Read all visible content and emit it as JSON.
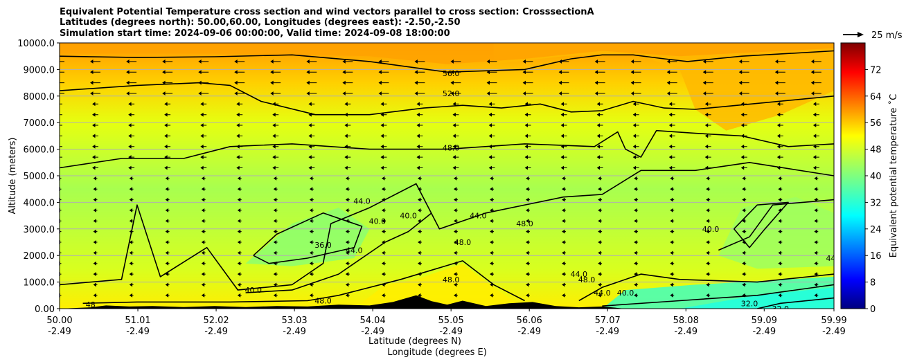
{
  "chart_data": {
    "type": "contour",
    "title_lines": [
      "Equivalent Potential Temperature cross section and wind vectors parallel to cross section: CrosssectionA",
      "Latitudes (degrees north): 50.00,60.00, Longitudes (degrees east): -2.50,-2.50",
      "Simulation start time: 2024-09-06 00:00:00, Valid time: 2024-09-08 18:00:00"
    ],
    "xlabel": "Latitude (degrees N)",
    "xlabel2": "Longitude (degrees E)",
    "ylabel": "Altitude (meters)",
    "xlim": [
      50.0,
      59.99
    ],
    "ylim": [
      0,
      10000
    ],
    "x_ticks": [
      {
        "lat": "50.00",
        "lon": "-2.49",
        "value": 50.0
      },
      {
        "lat": "51.01",
        "lon": "-2.49",
        "value": 51.01
      },
      {
        "lat": "52.02",
        "lon": "-2.49",
        "value": 52.02
      },
      {
        "lat": "53.03",
        "lon": "-2.49",
        "value": 53.03
      },
      {
        "lat": "54.04",
        "lon": "-2.49",
        "value": 54.04
      },
      {
        "lat": "55.05",
        "lon": "-2.49",
        "value": 55.05
      },
      {
        "lat": "56.06",
        "lon": "-2.49",
        "value": 56.06
      },
      {
        "lat": "57.07",
        "lon": "-2.49",
        "value": 57.07
      },
      {
        "lat": "58.08",
        "lon": "-2.49",
        "value": 58.08
      },
      {
        "lat": "59.09",
        "lon": "-2.49",
        "value": 59.09
      },
      {
        "lat": "59.99",
        "lon": "-2.49",
        "value": 59.99
      }
    ],
    "y_ticks": [
      {
        "label": "0.00",
        "value": 0
      },
      {
        "label": "1000.0",
        "value": 1000
      },
      {
        "label": "2000.0",
        "value": 2000
      },
      {
        "label": "3000.0",
        "value": 3000
      },
      {
        "label": "4000.0",
        "value": 4000
      },
      {
        "label": "5000.0",
        "value": 5000
      },
      {
        "label": "6000.0",
        "value": 6000
      },
      {
        "label": "7000.0",
        "value": 7000
      },
      {
        "label": "8000.0",
        "value": 8000
      },
      {
        "label": "9000.0",
        "value": 9000
      },
      {
        "label": "10000.0",
        "value": 10000
      }
    ],
    "grid": "horizontal",
    "colorbar": {
      "label": "Equivalent potential temperature $^\\circ$C",
      "label_text": "Equivalent potential temperature ˚C",
      "min": 0,
      "max": 80,
      "ticks": [
        "0",
        "8",
        "16",
        "24",
        "32",
        "40",
        "48",
        "56",
        "64",
        "72"
      ],
      "colormap": "jet"
    },
    "quiver_key": {
      "label": "25 m/s",
      "speed": 25
    },
    "contours": [
      {
        "level": 56.0,
        "points": [
          [
            50.0,
            9500
          ],
          [
            51.0,
            9450
          ],
          [
            52.0,
            9480
          ],
          [
            53.0,
            9550
          ],
          [
            54.0,
            9300
          ],
          [
            55.0,
            8900
          ],
          [
            56.0,
            9000
          ],
          [
            56.6,
            9400
          ],
          [
            57.0,
            9550
          ],
          [
            57.4,
            9550
          ],
          [
            57.8,
            9400
          ],
          [
            58.1,
            9300
          ],
          [
            58.8,
            9500
          ],
          [
            59.99,
            9700
          ]
        ]
      },
      {
        "level": 52.0,
        "points": [
          [
            50.0,
            8200
          ],
          [
            51.0,
            8400
          ],
          [
            51.8,
            8500
          ],
          [
            52.2,
            8400
          ],
          [
            52.6,
            7800
          ],
          [
            53.3,
            7300
          ],
          [
            54.0,
            7300
          ],
          [
            54.7,
            7550
          ],
          [
            55.2,
            7650
          ],
          [
            55.7,
            7550
          ],
          [
            56.2,
            7700
          ],
          [
            56.6,
            7400
          ],
          [
            57.0,
            7450
          ],
          [
            57.4,
            7800
          ],
          [
            57.8,
            7550
          ],
          [
            58.2,
            7500
          ],
          [
            59.99,
            8000
          ]
        ]
      },
      {
        "level": 48.0,
        "points": [
          [
            50.0,
            5300
          ],
          [
            50.8,
            5650
          ],
          [
            51.6,
            5650
          ],
          [
            52.2,
            6100
          ],
          [
            53.0,
            6200
          ],
          [
            54.0,
            6000
          ],
          [
            55.0,
            6000
          ],
          [
            56.0,
            6200
          ],
          [
            56.9,
            6100
          ],
          [
            57.2,
            6650
          ],
          [
            57.3,
            6000
          ],
          [
            57.5,
            5700
          ],
          [
            57.7,
            6700
          ],
          [
            58.2,
            6600
          ],
          [
            58.8,
            6500
          ],
          [
            59.4,
            6100
          ],
          [
            59.99,
            6200
          ]
        ]
      },
      {
        "level": 44.0,
        "points": [
          [
            50.0,
            900
          ],
          [
            50.8,
            1100
          ],
          [
            51.0,
            3900
          ],
          [
            51.3,
            1200
          ],
          [
            51.9,
            2300
          ],
          [
            52.3,
            700
          ],
          [
            53.0,
            900
          ],
          [
            53.4,
            1700
          ],
          [
            53.5,
            3200
          ],
          [
            54.0,
            3800
          ],
          [
            54.6,
            4700
          ],
          [
            54.9,
            3000
          ],
          [
            55.5,
            3600
          ],
          [
            56.5,
            4200
          ],
          [
            57.0,
            4300
          ],
          [
            57.5,
            5200
          ],
          [
            58.2,
            5200
          ],
          [
            58.9,
            5500
          ],
          [
            59.99,
            5000
          ]
        ]
      },
      {
        "level": 40.0,
        "points": [
          [
            52.4,
            600
          ],
          [
            53.0,
            700
          ],
          [
            53.6,
            1300
          ],
          [
            53.9,
            1900
          ],
          [
            54.2,
            2500
          ],
          [
            54.5,
            2900
          ],
          [
            54.8,
            3600
          ]
        ]
      },
      {
        "level": 40.0,
        "points": [
          [
            58.5,
            2200
          ],
          [
            58.9,
            2700
          ],
          [
            59.2,
            3900
          ],
          [
            59.99,
            4100
          ]
        ]
      },
      {
        "level": 36.0,
        "points": [
          [
            52.5,
            2000
          ],
          [
            52.8,
            2800
          ],
          [
            53.4,
            3600
          ],
          [
            53.9,
            3100
          ],
          [
            53.8,
            2300
          ],
          [
            53.2,
            1900
          ],
          [
            52.7,
            1700
          ],
          [
            52.5,
            2000
          ]
        ]
      },
      {
        "level": 40.0,
        "points": [
          [
            58.7,
            3000
          ],
          [
            59.0,
            3900
          ],
          [
            59.4,
            4000
          ],
          [
            59.1,
            3000
          ],
          [
            58.9,
            2300
          ],
          [
            58.7,
            3000
          ]
        ]
      },
      {
        "level": 48.0,
        "points": [
          [
            50.3,
            200
          ],
          [
            51.0,
            250
          ],
          [
            52.2,
            250
          ],
          [
            53.2,
            300
          ],
          [
            53.6,
            500
          ],
          [
            54.4,
            1100
          ],
          [
            55.2,
            1800
          ],
          [
            55.6,
            900
          ],
          [
            56.0,
            300
          ]
        ]
      },
      {
        "level": 44.0,
        "points": [
          [
            56.7,
            300
          ],
          [
            57.0,
            800
          ],
          [
            57.5,
            1300
          ],
          [
            58.0,
            1100
          ],
          [
            59.0,
            1000
          ],
          [
            59.99,
            1300
          ]
        ]
      },
      {
        "level": 40.0,
        "points": [
          [
            57.0,
            100
          ],
          [
            58.0,
            300
          ],
          [
            59.0,
            500
          ],
          [
            59.99,
            900
          ]
        ]
      },
      {
        "level": 32.0,
        "points": [
          [
            59.0,
            0
          ],
          [
            59.3,
            200
          ],
          [
            59.99,
            400
          ]
        ]
      }
    ],
    "contour_labels": [
      {
        "text": "56.0",
        "x": 55.05,
        "y": 8850
      },
      {
        "text": "52.0",
        "x": 55.05,
        "y": 8100
      },
      {
        "text": "48.0",
        "x": 55.05,
        "y": 6050
      },
      {
        "text": "44.0",
        "x": 53.9,
        "y": 4050
      },
      {
        "text": "36.0",
        "x": 53.4,
        "y": 2400
      },
      {
        "text": "48.0",
        "x": 55.2,
        "y": 2500
      },
      {
        "text": "44.0",
        "x": 55.4,
        "y": 3500
      },
      {
        "text": "40.0",
        "x": 54.5,
        "y": 3500
      },
      {
        "text": "40.0",
        "x": 54.1,
        "y": 3300
      },
      {
        "text": "44.0",
        "x": 53.8,
        "y": 2200
      },
      {
        "text": "48.0",
        "x": 56.0,
        "y": 3200
      },
      {
        "text": "40.0",
        "x": 58.4,
        "y": 3000
      },
      {
        "text": "40.0",
        "x": 52.5,
        "y": 700
      },
      {
        "text": "48.0",
        "x": 53.4,
        "y": 300
      },
      {
        "text": "48.0",
        "x": 55.05,
        "y": 1100
      },
      {
        "text": "44.0",
        "x": 56.7,
        "y": 1300
      },
      {
        "text": "48.0",
        "x": 56.8,
        "y": 1100
      },
      {
        "text": "44.0",
        "x": 57.0,
        "y": 600
      },
      {
        "text": "40.0",
        "x": 57.3,
        "y": 600
      },
      {
        "text": "32.0",
        "x": 58.9,
        "y": 200
      },
      {
        "text": "32.0",
        "x": 59.3,
        "y": 0
      },
      {
        "text": "48",
        "x": 50.4,
        "y": 150
      },
      {
        "text": "44",
        "x": 59.95,
        "y": 1900
      }
    ],
    "terrain": [
      [
        50.0,
        0
      ],
      [
        50.4,
        50
      ],
      [
        50.6,
        120
      ],
      [
        50.9,
        80
      ],
      [
        51.2,
        100
      ],
      [
        51.6,
        60
      ],
      [
        52.0,
        100
      ],
      [
        52.4,
        60
      ],
      [
        52.8,
        100
      ],
      [
        53.2,
        80
      ],
      [
        53.6,
        150
      ],
      [
        54.0,
        120
      ],
      [
        54.3,
        250
      ],
      [
        54.6,
        500
      ],
      [
        54.8,
        280
      ],
      [
        55.0,
        150
      ],
      [
        55.2,
        300
      ],
      [
        55.5,
        100
      ],
      [
        55.8,
        200
      ],
      [
        56.1,
        250
      ],
      [
        56.4,
        100
      ],
      [
        56.7,
        50
      ],
      [
        57.0,
        80
      ],
      [
        57.3,
        0
      ],
      [
        59.99,
        0
      ]
    ]
  }
}
